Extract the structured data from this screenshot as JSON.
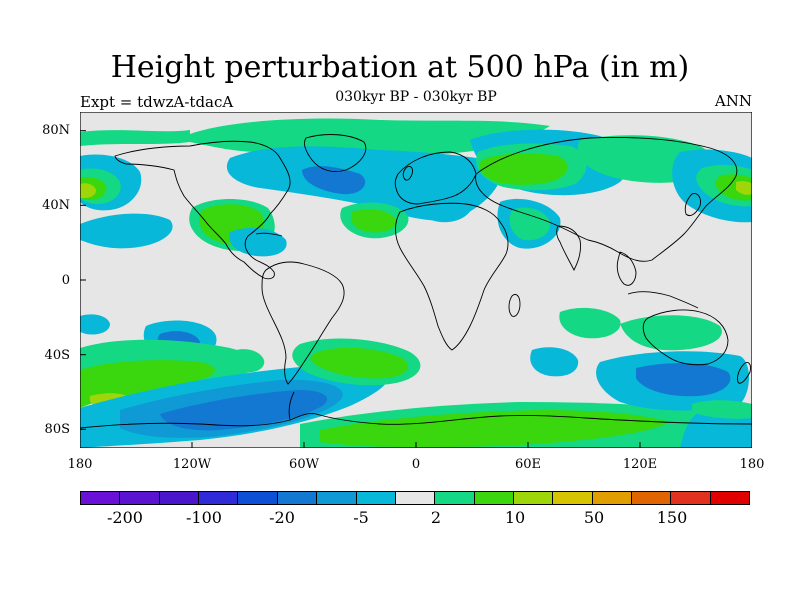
{
  "header": {
    "title": "Height perturbation at 500 hPa (in m)",
    "expt": "Expt = tdwzA-tdacA",
    "period": "030kyr BP - 030kyr BP",
    "season": "ANN"
  },
  "axes": {
    "lat_labels": [
      "80N",
      "40N",
      "0",
      "40S",
      "80S"
    ],
    "lon_labels": [
      "180",
      "120W",
      "60W",
      "0",
      "60E",
      "120E",
      "180"
    ]
  },
  "colorbar": {
    "colors": [
      "#6a11d8",
      "#5a13d0",
      "#4a16cc",
      "#2f2bd8",
      "#0c50d6",
      "#1278d2",
      "#0f9ad6",
      "#08b8d8",
      "#e6e6e6",
      "#14d884",
      "#3ad60e",
      "#9ed60a",
      "#d6c400",
      "#e09e00",
      "#e06400",
      "#e0321e",
      "#e00000"
    ],
    "labels": [
      "-200",
      "-100",
      "-20",
      "-5",
      "2",
      "10",
      "50",
      "150"
    ]
  },
  "map_colors": {
    "background": "#e6e6e6",
    "light_blue": "#08b8d8",
    "mid_blue": "#0f9ad6",
    "blue": "#1278d2",
    "teal": "#14d884",
    "green": "#3ad60e",
    "yellow_green": "#9ed60a"
  }
}
